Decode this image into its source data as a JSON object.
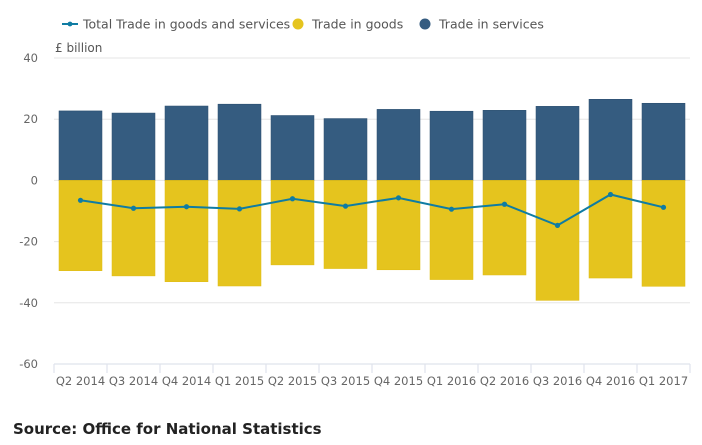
{
  "chart_data": {
    "type": "bar",
    "stacked": true,
    "title": "",
    "ylabel": "£ billion",
    "xlabel": "",
    "ylim": [
      -60,
      40
    ],
    "yticks": [
      40,
      20,
      0,
      -20,
      -40,
      -60
    ],
    "grid": true,
    "legend_position": "top",
    "categories": [
      "Q2 2014",
      "Q3 2014",
      "Q4 2014",
      "Q1 2015",
      "Q2 2015",
      "Q3 2015",
      "Q4 2015",
      "Q1 2016",
      "Q2 2016",
      "Q3 2016",
      "Q4 2016",
      "Q1 2017"
    ],
    "series": [
      {
        "name": "Total Trade in goods and services",
        "kind": "line",
        "color": "#0F7CA3",
        "values": [
          -6.5,
          -9.1,
          -8.6,
          -9.3,
          -6.0,
          -8.4,
          -5.7,
          -9.4,
          -7.8,
          -14.7,
          -4.6,
          -8.8
        ]
      },
      {
        "name": "Trade in goods",
        "kind": "bar",
        "color": "#E5C41E",
        "values": [
          -29.5,
          -31.2,
          -33.1,
          -34.5,
          -27.6,
          -28.8,
          -29.2,
          -32.4,
          -30.9,
          -39.2,
          -31.9,
          -34.6
        ]
      },
      {
        "name": "Trade in services",
        "kind": "bar",
        "color": "#355C80",
        "values": [
          22.7,
          22.0,
          24.3,
          24.9,
          21.2,
          20.2,
          23.2,
          22.6,
          22.9,
          24.2,
          26.5,
          25.2
        ]
      }
    ]
  },
  "source": "Source: Office for National Statistics"
}
